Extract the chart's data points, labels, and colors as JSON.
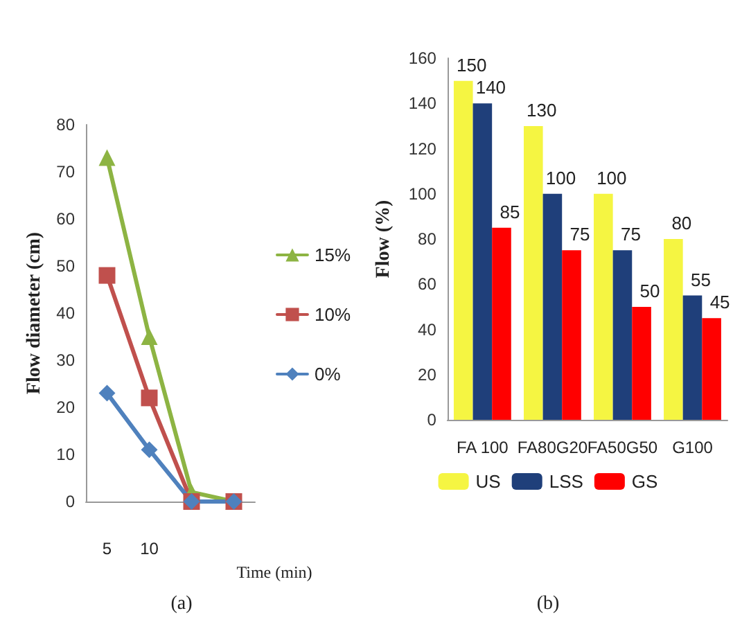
{
  "chart_data": [
    {
      "type": "line",
      "title": "(a)",
      "xlabel": "Time (min)",
      "ylabel": "Flow diameter (cm)",
      "categories": [
        "5",
        "10",
        null,
        null
      ],
      "series": [
        {
          "name": "15%",
          "color": "#8db443",
          "marker": "triangle",
          "values": [
            73,
            35,
            2,
            0
          ]
        },
        {
          "name": "10%",
          "color": "#c0504d",
          "marker": "square",
          "values": [
            48,
            22,
            0,
            0
          ]
        },
        {
          "name": "0%",
          "color": "#4f81bd",
          "marker": "diamond",
          "values": [
            23,
            11,
            0,
            0
          ]
        }
      ],
      "ylim": [
        0,
        80
      ],
      "yticks": [
        0,
        10,
        20,
        30,
        40,
        50,
        60,
        70,
        80
      ],
      "grid": false,
      "legend": "right"
    },
    {
      "type": "bar",
      "title": "(b)",
      "ylabel": "Flow (%)",
      "categories": [
        "FA 100",
        "FA80G20",
        "FA50G50",
        "G100"
      ],
      "series": [
        {
          "name": "US",
          "color": "#f5f542",
          "values": [
            150,
            130,
            100,
            80
          ]
        },
        {
          "name": "LSS",
          "color": "#1f3f7a",
          "values": [
            140,
            100,
            75,
            55
          ]
        },
        {
          "name": "GS",
          "color": "#ff0000",
          "values": [
            85,
            75,
            50,
            45
          ]
        }
      ],
      "ylim": [
        0,
        160
      ],
      "yticks": [
        0,
        20,
        40,
        60,
        80,
        100,
        120,
        140,
        160
      ],
      "grid": false,
      "legend": "bottom",
      "data_labels": true
    }
  ]
}
